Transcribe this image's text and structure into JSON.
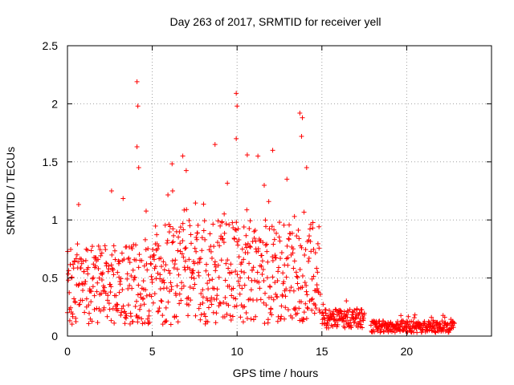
{
  "chart_data": {
    "type": "scatter",
    "title": "Day 263 of 2017, SRMTID for receiver yell",
    "xlabel": "GPS time / hours",
    "ylabel": "SRMTID / TECUs",
    "xlim": [
      0,
      25
    ],
    "ylim": [
      0,
      2.5
    ],
    "x_ticks": [
      0,
      5,
      10,
      15,
      20
    ],
    "x_tick_labels": [
      "0",
      "5",
      "10",
      "15",
      "20"
    ],
    "y_ticks": [
      0,
      0.5,
      1,
      1.5,
      2,
      2.5
    ],
    "y_tick_labels": [
      "0",
      "0.5",
      "1",
      "1.5",
      "2",
      "2.5"
    ],
    "grid": true,
    "marker": "+",
    "series": [
      {
        "name": "SRMTID",
        "color": "#ff0000",
        "segments": [
          {
            "x_start": 0.0,
            "x_end": 5.2,
            "step": 0.02,
            "base": 0.45,
            "spread": 0.35
          },
          {
            "x_start": 5.2,
            "x_end": 14.9,
            "step": 0.02,
            "base": 0.55,
            "spread": 0.45
          },
          {
            "x_start": 15.0,
            "x_end": 17.5,
            "step": 0.02,
            "base": 0.15,
            "spread": 0.08
          },
          {
            "x_start": 17.9,
            "x_end": 22.8,
            "step": 0.02,
            "base": 0.08,
            "spread": 0.05
          }
        ],
        "peaks": [
          {
            "x": 4.1,
            "y": 2.19
          },
          {
            "x": 4.15,
            "y": 1.98
          },
          {
            "x": 4.1,
            "y": 1.63
          },
          {
            "x": 4.2,
            "y": 1.45
          },
          {
            "x": 6.8,
            "y": 1.55
          },
          {
            "x": 8.7,
            "y": 1.65
          },
          {
            "x": 9.95,
            "y": 2.09
          },
          {
            "x": 10.0,
            "y": 1.98
          },
          {
            "x": 9.95,
            "y": 1.7
          },
          {
            "x": 10.6,
            "y": 1.56
          },
          {
            "x": 12.1,
            "y": 1.6
          },
          {
            "x": 13.7,
            "y": 1.92
          },
          {
            "x": 13.85,
            "y": 1.88
          },
          {
            "x": 13.8,
            "y": 1.72
          },
          {
            "x": 14.1,
            "y": 1.45
          },
          {
            "x": 2.6,
            "y": 1.25
          },
          {
            "x": 6.2,
            "y": 1.25
          }
        ]
      }
    ]
  }
}
